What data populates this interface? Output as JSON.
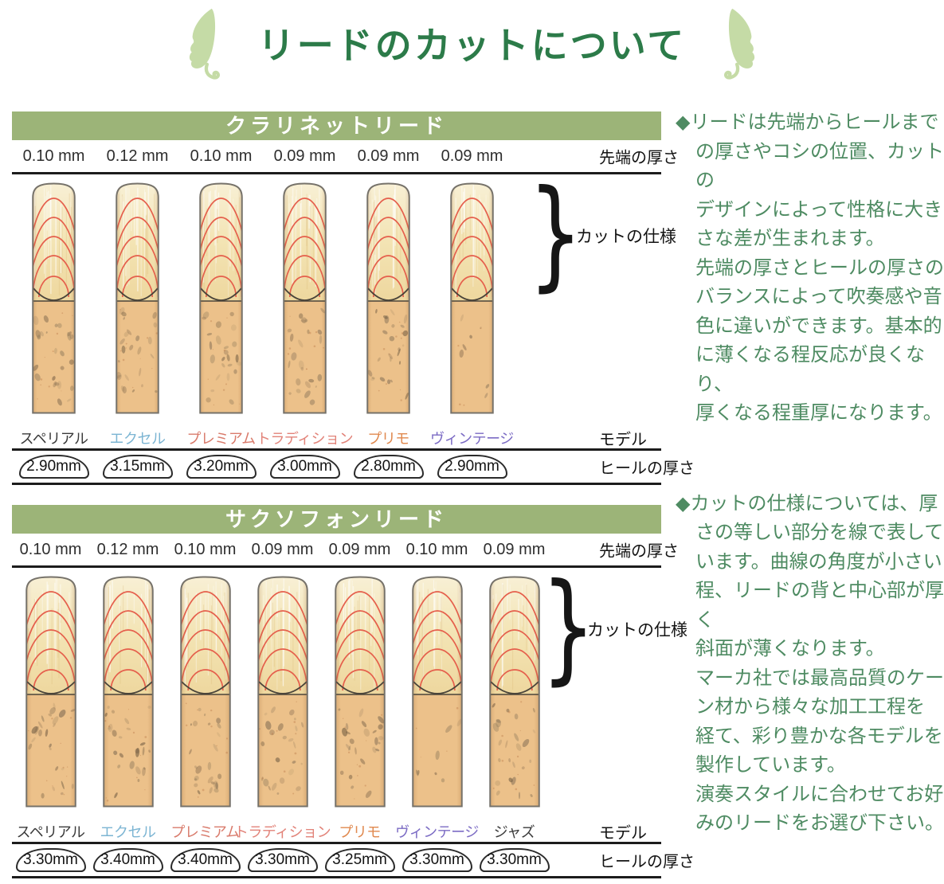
{
  "page_title": "リードのカットについて",
  "colors": {
    "header_bar": "#9cb478",
    "title_green": "#2c7b49",
    "note_green": "#4e8b62",
    "rule": "#1c1c1c",
    "cut_line_red": "#e55f4c"
  },
  "notes": [
    {
      "text": "◆リードは先端からヒールまで\nの厚さやコシの位置、カットの\nデザインによって性格に大き\nさな差が生まれます。\n先端の厚さとヒールの厚さの\nバランスによって吹奏感や音\n色に違いができます。基本的\nに薄くなる程反応が良くなり、\n厚くなる程重厚になります。"
    },
    {
      "text": "◆カットの仕様については、厚\nさの等しい部分を線で表して\nいます。曲線の角度が小さい\n程、リードの背と中心部が厚く\n斜面が薄くなります。\nマーカ社では最高品質のケー\nン材から様々な加工工程を\n経て、彩り豊かな各モデルを\n製作しています。\n演奏スタイルに合わせてお好\nみのリードをお選び下さい。"
    }
  ],
  "sections": [
    {
      "header": "クラリネットリード",
      "tip_heading": "先端の厚さ",
      "model_heading": "モデル",
      "heel_heading": "ヒールの厚さ",
      "bracket_label": "カットの仕様",
      "models": [
        {
          "name": "スペリアル",
          "color": "#3a3a3a",
          "tip": "0.10 mm",
          "heel": "2.90mm"
        },
        {
          "name": "エクセル",
          "color": "#7cb5d3",
          "tip": "0.12 mm",
          "heel": "3.15mm"
        },
        {
          "name": "プレミアム",
          "color": "#d97b6c",
          "tip": "0.10 mm",
          "heel": "3.20mm"
        },
        {
          "name": "トラディション",
          "color": "#e28379",
          "tip": "0.09 mm",
          "heel": "3.00mm"
        },
        {
          "name": "プリモ",
          "color": "#e0894f",
          "tip": "0.09 mm",
          "heel": "2.80mm"
        },
        {
          "name": "ヴィンテージ",
          "color": "#7b6bc4",
          "tip": "0.09 mm",
          "heel": "2.90mm"
        }
      ]
    },
    {
      "header": "サクソフォンリード",
      "tip_heading": "先端の厚さ",
      "model_heading": "モデル",
      "heel_heading": "ヒールの厚さ",
      "bracket_label": "カットの仕様",
      "models": [
        {
          "name": "スペリアル",
          "color": "#3a3a3a",
          "tip": "0.10 mm",
          "heel": "3.30mm"
        },
        {
          "name": "エクセル",
          "color": "#7cb5d3",
          "tip": "0.12 mm",
          "heel": "3.40mm"
        },
        {
          "name": "プレミアム",
          "color": "#d97b6c",
          "tip": "0.10 mm",
          "heel": "3.40mm"
        },
        {
          "name": "トラディション",
          "color": "#e28379",
          "tip": "0.09 mm",
          "heel": "3.30mm"
        },
        {
          "name": "プリモ",
          "color": "#e0894f",
          "tip": "0.09 mm",
          "heel": "3.25mm"
        },
        {
          "name": "ヴィンテージ",
          "color": "#7b6bc4",
          "tip": "0.10 mm",
          "heel": "3.30mm"
        },
        {
          "name": "ジャズ",
          "color": "#3a3a3a",
          "tip": "0.09 mm",
          "heel": "3.30mm"
        }
      ]
    }
  ]
}
